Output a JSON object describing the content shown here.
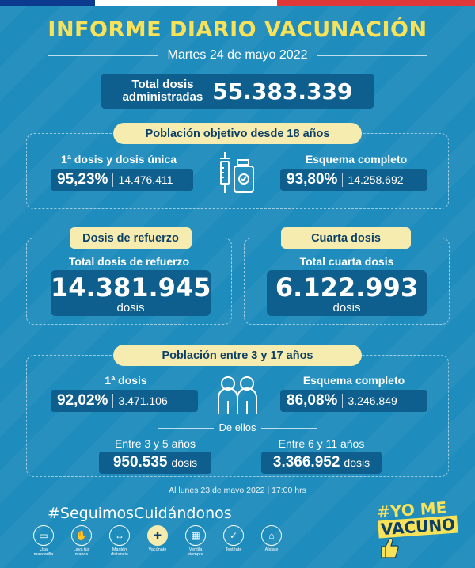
{
  "header": {
    "title": "INFORME DIARIO VACUNACIÓN",
    "date": "Martes 24 de mayo 2022"
  },
  "total": {
    "label_line1": "Total dosis",
    "label_line2": "administradas",
    "value": "55.383.339"
  },
  "adult": {
    "section_title": "Población objetivo desde 18 años",
    "first_label": "1ª dosis y dosis única",
    "first_pct": "95,23%",
    "first_count": "14.476.411",
    "complete_label": "Esquema completo",
    "complete_pct": "93,80%",
    "complete_count": "14.258.692"
  },
  "booster": {
    "title": "Dosis de refuerzo",
    "label": "Total dosis de refuerzo",
    "value": "14.381.945",
    "unit": "dosis"
  },
  "fourth": {
    "title": "Cuarta dosis",
    "label": "Total cuarta dosis",
    "value": "6.122.993",
    "unit": "dosis"
  },
  "kids": {
    "section_title": "Población entre 3 y 17 años",
    "first_label": "1ª dosis",
    "first_pct": "92,02%",
    "first_count": "3.471.106",
    "complete_label": "Esquema completo",
    "complete_pct": "86,08%",
    "complete_count": "3.246.849",
    "of_them": "De ellos",
    "age_3_5_label": "Entre 3 y 5 años",
    "age_3_5_value": "950.535",
    "age_6_11_label": "Entre 6 y 11 años",
    "age_6_11_value": "3.366.952",
    "unit": "dosis"
  },
  "footnote": "Al lunes 23 de mayo 2022 | 17:00 hrs",
  "hashtag": "#SeguimosCuidándonos",
  "care_items": [
    {
      "label": "Usa mascarilla",
      "icon": "mask-icon"
    },
    {
      "label": "Lava tus manos",
      "icon": "hands-icon"
    },
    {
      "label": "Mantén distancia",
      "icon": "distance-icon"
    },
    {
      "label": "Vacúnate",
      "icon": "vaccine-icon"
    },
    {
      "label": "Ventila siempre",
      "icon": "window-icon"
    },
    {
      "label": "Testéate",
      "icon": "test-icon"
    },
    {
      "label": "Aíslate",
      "icon": "home-icon"
    }
  ],
  "campaign": {
    "line1": "#YO ME",
    "line2": "VACUNO"
  },
  "colors": {
    "background": "#1e8cbc",
    "box": "#0f5f8e",
    "accent_yellow": "#f7e25a",
    "pill": "#f7ecb0"
  }
}
